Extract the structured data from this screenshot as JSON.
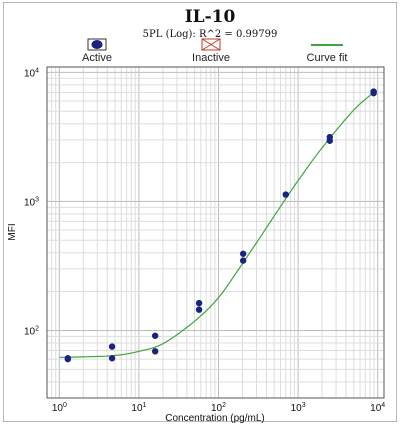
{
  "chart_data": {
    "type": "scatter",
    "title": "IL-10",
    "subtitle": "5PL (Log): R^2 = 0.99799",
    "xlabel": "Concentration (pg/mL)",
    "ylabel": "MFI",
    "x_scale": "log",
    "y_scale": "log",
    "xlim": [
      0.7,
      12000
    ],
    "ylim": [
      30,
      11000
    ],
    "grid": true,
    "legend": {
      "placement": "top",
      "entries": [
        {
          "label": "Active",
          "marker": "filled-dot"
        },
        {
          "label": "Inactive",
          "marker": "crossed-box"
        },
        {
          "label": "Curve fit",
          "marker": "line"
        }
      ]
    },
    "x_ticks": [
      {
        "value": 1,
        "base": "10",
        "exp": "0"
      },
      {
        "value": 10,
        "base": "10",
        "exp": "1"
      },
      {
        "value": 100,
        "base": "10",
        "exp": "2"
      },
      {
        "value": 1000,
        "base": "10",
        "exp": "3"
      },
      {
        "value": 10000,
        "base": "10",
        "exp": "4"
      }
    ],
    "y_ticks": [
      {
        "value": 100,
        "base": "10",
        "exp": "2"
      },
      {
        "value": 1000,
        "base": "10",
        "exp": "3"
      },
      {
        "value": 10000,
        "base": "10",
        "exp": "4"
      }
    ],
    "series": [
      {
        "name": "Active",
        "color": "#1a237e",
        "points": [
          {
            "x": 1.28,
            "y": 61
          },
          {
            "x": 1.28,
            "y": 60
          },
          {
            "x": 4.6,
            "y": 75
          },
          {
            "x": 4.6,
            "y": 61
          },
          {
            "x": 16,
            "y": 91
          },
          {
            "x": 16,
            "y": 69
          },
          {
            "x": 57,
            "y": 163
          },
          {
            "x": 57,
            "y": 145
          },
          {
            "x": 204,
            "y": 393
          },
          {
            "x": 204,
            "y": 348
          },
          {
            "x": 700,
            "y": 1130
          },
          {
            "x": 2500,
            "y": 3150
          },
          {
            "x": 2500,
            "y": 2950
          },
          {
            "x": 8900,
            "y": 7100
          },
          {
            "x": 8900,
            "y": 6900
          }
        ]
      },
      {
        "name": "Curve fit",
        "color": "#3fa53f",
        "curve": [
          [
            1.0,
            62
          ],
          [
            2,
            62.5
          ],
          [
            5,
            64
          ],
          [
            10,
            69
          ],
          [
            20,
            79
          ],
          [
            50,
            118
          ],
          [
            100,
            180
          ],
          [
            200,
            330
          ],
          [
            500,
            770
          ],
          [
            1000,
            1450
          ],
          [
            2000,
            2600
          ],
          [
            5000,
            5100
          ],
          [
            9500,
            7200
          ]
        ]
      }
    ]
  }
}
